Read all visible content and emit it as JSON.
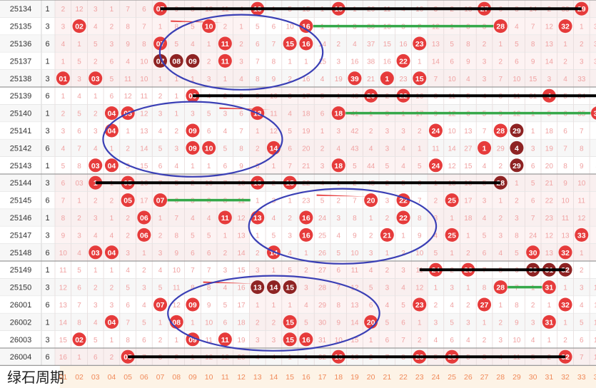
{
  "footer": {
    "title": "绿石周期"
  },
  "columns": [
    "01",
    "02",
    "03",
    "04",
    "05",
    "06",
    "07",
    "08",
    "09",
    "10",
    "11",
    "12",
    "13",
    "14",
    "15",
    "16",
    "17",
    "18",
    "19",
    "20",
    "21",
    "22",
    "23",
    "24",
    "25",
    "26",
    "27",
    "28",
    "29",
    "30",
    "31",
    "32",
    "33",
    "34",
    "35"
  ],
  "colors": {
    "red": "#e63b3b",
    "dark": "#8e2323",
    "miss": "#f0a2a2",
    "blue": "#3a3fb5",
    "green": "#35a84a",
    "black": "#000000"
  },
  "chart_data": {
    "type": "table",
    "rows": [
      {
        "issue": "25134",
        "label": "1",
        "hits": [
          7,
          13,
          18,
          27,
          33
        ],
        "dark": [],
        "cells": [
          "2",
          "12",
          "3",
          "1",
          "7",
          "6",
          "07",
          "9",
          "8",
          "13",
          "11",
          "4",
          "13",
          "1",
          "5",
          "15",
          "1",
          "18",
          "1",
          "26",
          "11",
          "4",
          "10",
          "3",
          "2",
          "13",
          "27",
          "6",
          "8",
          "14",
          "2",
          "33",
          "29",
          "1",
          "5"
        ]
      },
      {
        "issue": "25135",
        "label": "3",
        "hits": [
          2,
          10,
          16,
          28,
          32
        ],
        "dark": [],
        "cells": [
          "3",
          "02",
          "4",
          "2",
          "8",
          "7",
          "1",
          "8",
          "5",
          "10",
          "2",
          "1",
          "5",
          "6",
          "10",
          "16",
          "1",
          "1",
          "3",
          "30",
          "13",
          "3",
          "2",
          "12",
          "1",
          "3",
          "3",
          "28",
          "4",
          "7",
          "12",
          "32",
          "1",
          "30",
          "2"
        ]
      },
      {
        "issue": "25136",
        "label": "6",
        "hits": [
          7,
          11,
          15,
          16,
          23
        ],
        "dark": [],
        "cells": [
          "4",
          "1",
          "5",
          "3",
          "9",
          "8",
          "07",
          "5",
          "4",
          "1",
          "11",
          "2",
          "6",
          "7",
          "15",
          "16",
          "14",
          "2",
          "4",
          "37",
          "15",
          "16",
          "23",
          "13",
          "5",
          "8",
          "2",
          "1",
          "5",
          "8",
          "13",
          "1",
          "2",
          "31",
          "3"
        ]
      },
      {
        "issue": "25137",
        "label": "1",
        "hits": [
          7,
          8,
          9,
          11,
          22
        ],
        "dark": [
          7,
          8,
          9
        ],
        "cells": [
          "1",
          "5",
          "2",
          "6",
          "4",
          "10",
          "07",
          "08",
          "09",
          "2",
          "11",
          "3",
          "7",
          "8",
          "1",
          "1",
          "15",
          "3",
          "16",
          "38",
          "16",
          "22",
          "1",
          "14",
          "6",
          "9",
          "3",
          "2",
          "6",
          "9",
          "14",
          "2",
          "3",
          "32",
          "4"
        ]
      },
      {
        "issue": "25138",
        "label": "3",
        "hits": [
          1,
          3,
          19,
          21,
          23
        ],
        "dark": [],
        "cells": [
          "01",
          "3",
          "03",
          "5",
          "11",
          "10",
          "1",
          "1",
          "1",
          "3",
          "1",
          "4",
          "8",
          "9",
          "2",
          "16",
          "4",
          "19",
          "39",
          "21",
          "1",
          "23",
          "15",
          "7",
          "10",
          "4",
          "3",
          "7",
          "10",
          "15",
          "3",
          "4",
          "33",
          "5",
          "5"
        ]
      },
      {
        "issue": "25139",
        "label": "6",
        "hits": [
          9,
          20,
          22,
          31,
          35
        ],
        "dark": [],
        "cells": [
          "1",
          "4",
          "1",
          "6",
          "12",
          "11",
          "2",
          "1",
          "09",
          "4",
          "2",
          "5",
          "9",
          "10",
          "3",
          "17",
          "5",
          "1",
          "40",
          "20",
          "2",
          "22",
          "16",
          "8",
          "11",
          "5",
          "4",
          "8",
          "11",
          "31",
          "4",
          "5",
          "34",
          "6",
          "35"
        ]
      },
      {
        "issue": "25140",
        "label": "1",
        "hits": [
          4,
          5,
          13,
          18,
          34
        ],
        "dark": [],
        "cells": [
          "2",
          "5",
          "2",
          "04",
          "05",
          "12",
          "3",
          "1",
          "3",
          "5",
          "3",
          "6",
          "13",
          "11",
          "4",
          "18",
          "6",
          "18",
          "41",
          "1",
          "3",
          "1",
          "17",
          "9",
          "12",
          "6",
          "5",
          "9",
          "12",
          "1",
          "5",
          "6",
          "35",
          "34",
          "1"
        ]
      },
      {
        "issue": "25141",
        "label": "3",
        "hits": [
          4,
          9,
          24,
          28,
          29
        ],
        "dark": [
          29
        ],
        "cells": [
          "3",
          "6",
          "3",
          "04",
          "1",
          "13",
          "4",
          "2",
          "09",
          "6",
          "4",
          "7",
          "1",
          "12",
          "5",
          "19",
          "1",
          "3",
          "42",
          "2",
          "3",
          "3",
          "2",
          "24",
          "10",
          "13",
          "7",
          "28",
          "29",
          "1",
          "18",
          "6",
          "7",
          "2",
          "4"
        ]
      },
      {
        "issue": "25142",
        "label": "6",
        "hits": [
          9,
          10,
          14,
          27,
          29
        ],
        "dark": [
          29
        ],
        "cells": [
          "4",
          "7",
          "4",
          "1",
          "2",
          "14",
          "5",
          "3",
          "09",
          "10",
          "5",
          "8",
          "2",
          "14",
          "6",
          "20",
          "2",
          "4",
          "43",
          "4",
          "3",
          "4",
          "1",
          "11",
          "14",
          "27",
          "1",
          "29",
          "4",
          "3",
          "19",
          "7",
          "8",
          "3",
          "5"
        ]
      },
      {
        "issue": "25143",
        "label": "1",
        "hits": [
          3,
          4,
          18,
          24,
          29
        ],
        "dark": [
          29
        ],
        "cells": [
          "5",
          "8",
          "03",
          "04",
          "3",
          "15",
          "6",
          "4",
          "1",
          "1",
          "6",
          "9",
          "3",
          "1",
          "7",
          "21",
          "3",
          "18",
          "5",
          "44",
          "5",
          "4",
          "5",
          "24",
          "12",
          "15",
          "4",
          "2",
          "29",
          "6",
          "20",
          "8",
          "9",
          "4",
          "6"
        ]
      },
      {
        "issue": "25144",
        "label": "3",
        "hits": [
          3,
          5,
          13,
          15,
          28
        ],
        "dark": [
          28
        ],
        "cells": [
          "6",
          "03",
          "1",
          "1",
          "05",
          "16",
          "7",
          "5",
          "2",
          "10",
          "7",
          "10",
          "13",
          "2",
          "15",
          "22",
          "4",
          "1",
          "2",
          "45",
          "2",
          "5",
          "6",
          "1",
          "13",
          "16",
          "5",
          "28",
          "1",
          "5",
          "21",
          "9",
          "10",
          "5",
          "7"
        ]
      },
      {
        "issue": "25145",
        "label": "6",
        "hits": [
          5,
          7,
          20,
          22,
          25
        ],
        "dark": [],
        "cells": [
          "7",
          "1",
          "2",
          "2",
          "05",
          "17",
          "07",
          "6",
          "3",
          "3",
          "8",
          "11",
          "1",
          "3",
          "1",
          "23",
          "5",
          "2",
          "7",
          "20",
          "3",
          "22",
          "7",
          "2",
          "25",
          "17",
          "3",
          "1",
          "2",
          "6",
          "22",
          "10",
          "11",
          "6",
          "8"
        ]
      },
      {
        "issue": "25146",
        "label": "1",
        "hits": [
          6,
          11,
          13,
          16,
          22
        ],
        "dark": [],
        "cells": [
          "8",
          "2",
          "3",
          "1",
          "2",
          "06",
          "1",
          "7",
          "4",
          "4",
          "11",
          "12",
          "13",
          "4",
          "2",
          "16",
          "24",
          "3",
          "8",
          "1",
          "2",
          "22",
          "8",
          "3",
          "1",
          "18",
          "4",
          "2",
          "3",
          "7",
          "23",
          "11",
          "12",
          "7",
          "9"
        ]
      },
      {
        "issue": "25147",
        "label": "3",
        "hits": [
          6,
          16,
          21,
          25,
          33
        ],
        "dark": [],
        "cells": [
          "9",
          "3",
          "4",
          "4",
          "2",
          "06",
          "2",
          "8",
          "5",
          "5",
          "1",
          "13",
          "1",
          "5",
          "3",
          "16",
          "25",
          "4",
          "9",
          "2",
          "21",
          "1",
          "9",
          "4",
          "25",
          "1",
          "5",
          "3",
          "8",
          "24",
          "12",
          "13",
          "33",
          "8",
          "10"
        ]
      },
      {
        "issue": "25148",
        "label": "6",
        "hits": [
          3,
          4,
          14,
          30,
          32
        ],
        "dark": [],
        "cells": [
          "10",
          "4",
          "03",
          "04",
          "3",
          "1",
          "3",
          "9",
          "6",
          "6",
          "2",
          "14",
          "2",
          "14",
          "4",
          "1",
          "26",
          "5",
          "10",
          "3",
          "1",
          "2",
          "10",
          "5",
          "1",
          "2",
          "6",
          "4",
          "5",
          "30",
          "13",
          "32",
          "1",
          "8",
          "9"
        ]
      },
      {
        "issue": "25149",
        "label": "1",
        "hits": [
          24,
          26,
          30,
          31,
          32
        ],
        "dark": [
          30,
          31,
          32
        ],
        "cells": [
          "11",
          "5",
          "1",
          "1",
          "4",
          "2",
          "4",
          "10",
          "7",
          "7",
          "3",
          "15",
          "3",
          "1",
          "5",
          "2",
          "27",
          "6",
          "11",
          "4",
          "2",
          "3",
          "11",
          "24",
          "2",
          "26",
          "7",
          "5",
          "6",
          "30",
          "31",
          "32",
          "2",
          "9",
          "10"
        ]
      },
      {
        "issue": "25150",
        "label": "3",
        "hits": [
          13,
          14,
          15,
          28,
          31
        ],
        "dark": [
          13,
          14,
          15
        ],
        "cells": [
          "12",
          "6",
          "2",
          "2",
          "5",
          "3",
          "5",
          "11",
          "8",
          "8",
          "4",
          "16",
          "13",
          "14",
          "15",
          "3",
          "28",
          "7",
          "12",
          "5",
          "3",
          "4",
          "12",
          "1",
          "3",
          "1",
          "8",
          "28",
          "7",
          "1",
          "31",
          "1",
          "3",
          "10",
          "11"
        ]
      },
      {
        "issue": "26001",
        "label": "6",
        "hits": [
          7,
          9,
          23,
          27,
          32
        ],
        "dark": [],
        "cells": [
          "13",
          "7",
          "3",
          "3",
          "6",
          "4",
          "07",
          "12",
          "09",
          "9",
          "5",
          "17",
          "1",
          "1",
          "1",
          "4",
          "29",
          "8",
          "13",
          "6",
          "4",
          "5",
          "23",
          "2",
          "4",
          "2",
          "27",
          "1",
          "8",
          "2",
          "1",
          "32",
          "4",
          "11",
          "12"
        ]
      },
      {
        "issue": "26002",
        "label": "1",
        "hits": [
          4,
          8,
          15,
          20,
          31
        ],
        "dark": [],
        "cells": [
          "14",
          "8",
          "4",
          "04",
          "7",
          "5",
          "1",
          "08",
          "1",
          "10",
          "6",
          "18",
          "2",
          "2",
          "15",
          "5",
          "30",
          "9",
          "14",
          "20",
          "5",
          "6",
          "1",
          "3",
          "5",
          "3",
          "1",
          "2",
          "9",
          "3",
          "31",
          "1",
          "5",
          "12",
          "13"
        ]
      },
      {
        "issue": "26003",
        "label": "3",
        "hits": [
          2,
          9,
          11,
          15,
          16
        ],
        "dark": [],
        "cells": [
          "15",
          "02",
          "5",
          "1",
          "8",
          "6",
          "2",
          "1",
          "09",
          "11",
          "11",
          "19",
          "3",
          "3",
          "15",
          "16",
          "31",
          "10",
          "15",
          "1",
          "6",
          "7",
          "2",
          "4",
          "6",
          "4",
          "2",
          "3",
          "10",
          "4",
          "1",
          "2",
          "6",
          "13",
          "14"
        ]
      },
      {
        "issue": "26004",
        "label": "6",
        "hits": [
          5,
          18,
          23,
          25,
          32
        ],
        "dark": [],
        "cells": [
          "16",
          "1",
          "6",
          "2",
          "05",
          "7",
          "3",
          "2",
          "1",
          "12",
          "12",
          "20",
          "4",
          "4",
          "1",
          "1",
          "32",
          "18",
          "16",
          "2",
          "7",
          "8",
          "23",
          "5",
          "25",
          "5",
          "3",
          "4",
          "11",
          "5",
          "2",
          "32",
          "7",
          "14",
          "15"
        ]
      }
    ],
    "green_lines": [
      [
        "25135",
        16,
        28
      ],
      [
        "25140",
        18,
        34
      ],
      [
        "25145",
        7,
        13
      ],
      [
        "25150",
        28,
        31
      ]
    ],
    "red_marks": [
      [
        "25135",
        8,
        11
      ],
      [
        "25140",
        11,
        14
      ],
      [
        "25145",
        17,
        20
      ],
      [
        "25150",
        10,
        13
      ]
    ],
    "black_lines": [
      [
        "25134",
        7,
        33
      ],
      [
        "25139",
        9,
        35
      ],
      [
        "25144",
        3,
        28
      ],
      [
        "25149",
        23,
        32
      ],
      [
        "26004",
        5,
        32
      ]
    ],
    "ellipses": [
      [
        "25135",
        "25138",
        7.5,
        16.5
      ],
      [
        "25140",
        "25143",
        4,
        14
      ],
      [
        "25145",
        "25148",
        13,
        23.5
      ],
      [
        "25150",
        "26003",
        8,
        20
      ]
    ]
  }
}
